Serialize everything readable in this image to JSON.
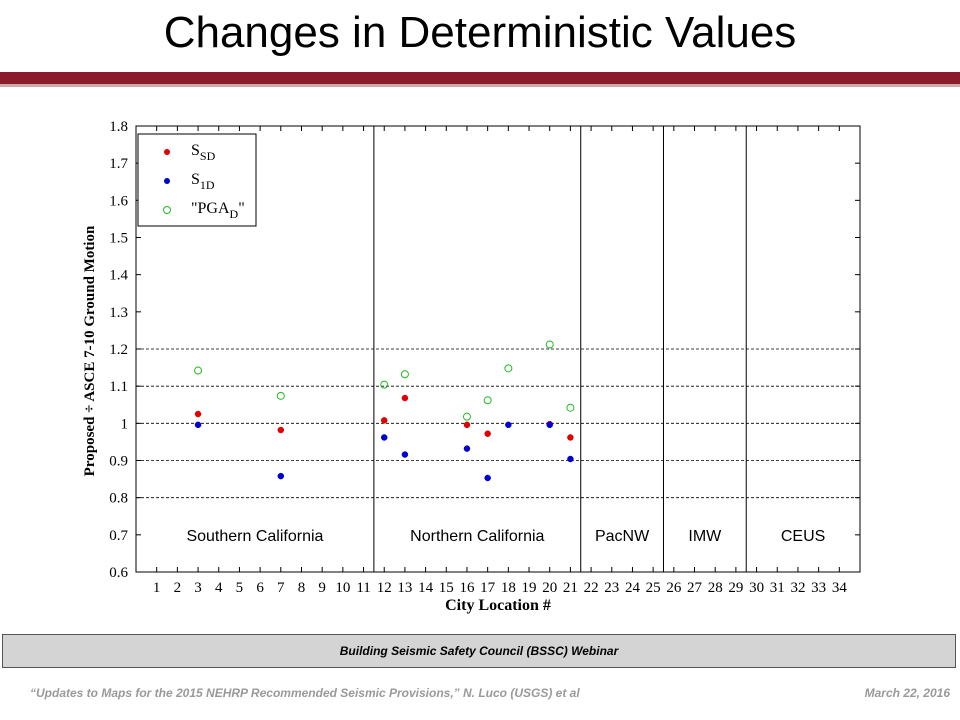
{
  "slide": {
    "title": "Changes in Deterministic Values"
  },
  "footer": {
    "banner": "Building Seismic Safety Council (BSSC) Webinar",
    "citation": "“Updates to Maps for the 2015 NEHRP Recommended Seismic Provisions,” N. Luco (USGS) et al",
    "date": "March 22, 2016"
  },
  "chart_data": {
    "type": "scatter",
    "xlabel": "City Location #",
    "ylabel": "Proposed ÷ ASCE 7-10 Ground Motion",
    "xlim": [
      0,
      35
    ],
    "ylim": [
      0.6,
      1.8
    ],
    "x_ticks": [
      1,
      2,
      3,
      4,
      5,
      6,
      7,
      8,
      9,
      10,
      11,
      12,
      13,
      14,
      15,
      16,
      17,
      18,
      19,
      20,
      21,
      22,
      23,
      24,
      25,
      26,
      27,
      28,
      29,
      30,
      31,
      32,
      33,
      34
    ],
    "y_ticks": [
      "0.6",
      "0.7",
      "0.8",
      "0.9",
      "1",
      "1.1",
      "1.2",
      "1.3",
      "1.4",
      "1.5",
      "1.6",
      "1.7",
      "1.8"
    ],
    "dashed_gridlines_y": [
      0.8,
      0.9,
      1.0,
      1.1,
      1.2
    ],
    "regions": [
      {
        "label": "Southern California",
        "x_start": 0,
        "x_end": 11.5
      },
      {
        "label": "Northern California",
        "x_start": 11.5,
        "x_end": 21.5
      },
      {
        "label": "PacNW",
        "x_start": 21.5,
        "x_end": 25.5
      },
      {
        "label": "IMW",
        "x_start": 25.5,
        "x_end": 29.5
      },
      {
        "label": "CEUS",
        "x_start": 29.5,
        "x_end": 35
      }
    ],
    "legend_position": "top-left",
    "series": [
      {
        "name": "S_SD",
        "legend_main": "S",
        "legend_sub": "SD",
        "marker": "filled-dot",
        "color": "#e00000",
        "points": [
          [
            3,
            1.025
          ],
          [
            7,
            0.982
          ],
          [
            12,
            1.008
          ],
          [
            13,
            1.068
          ],
          [
            16,
            0.996
          ],
          [
            17,
            0.972
          ],
          [
            20,
            0.998
          ],
          [
            21,
            0.962
          ]
        ]
      },
      {
        "name": "S_1D",
        "legend_main": "S",
        "legend_sub": "1D",
        "marker": "filled-dot",
        "color": "#0000d0",
        "points": [
          [
            3,
            0.996
          ],
          [
            7,
            0.858
          ],
          [
            12,
            0.962
          ],
          [
            13,
            0.916
          ],
          [
            16,
            0.932
          ],
          [
            17,
            0.853
          ],
          [
            18,
            0.996
          ],
          [
            20,
            0.996
          ],
          [
            21,
            0.904
          ]
        ]
      },
      {
        "name": "\"PGA_D\"",
        "legend_main": "\"PGA",
        "legend_sub": "D",
        "legend_after": "\"",
        "marker": "open-circle",
        "color": "#22bb22",
        "points": [
          [
            3,
            1.142
          ],
          [
            7,
            1.074
          ],
          [
            12,
            1.104
          ],
          [
            13,
            1.132
          ],
          [
            16,
            1.018
          ],
          [
            17,
            1.062
          ],
          [
            18,
            1.148
          ],
          [
            20,
            1.212
          ],
          [
            21,
            1.042
          ]
        ]
      }
    ]
  }
}
